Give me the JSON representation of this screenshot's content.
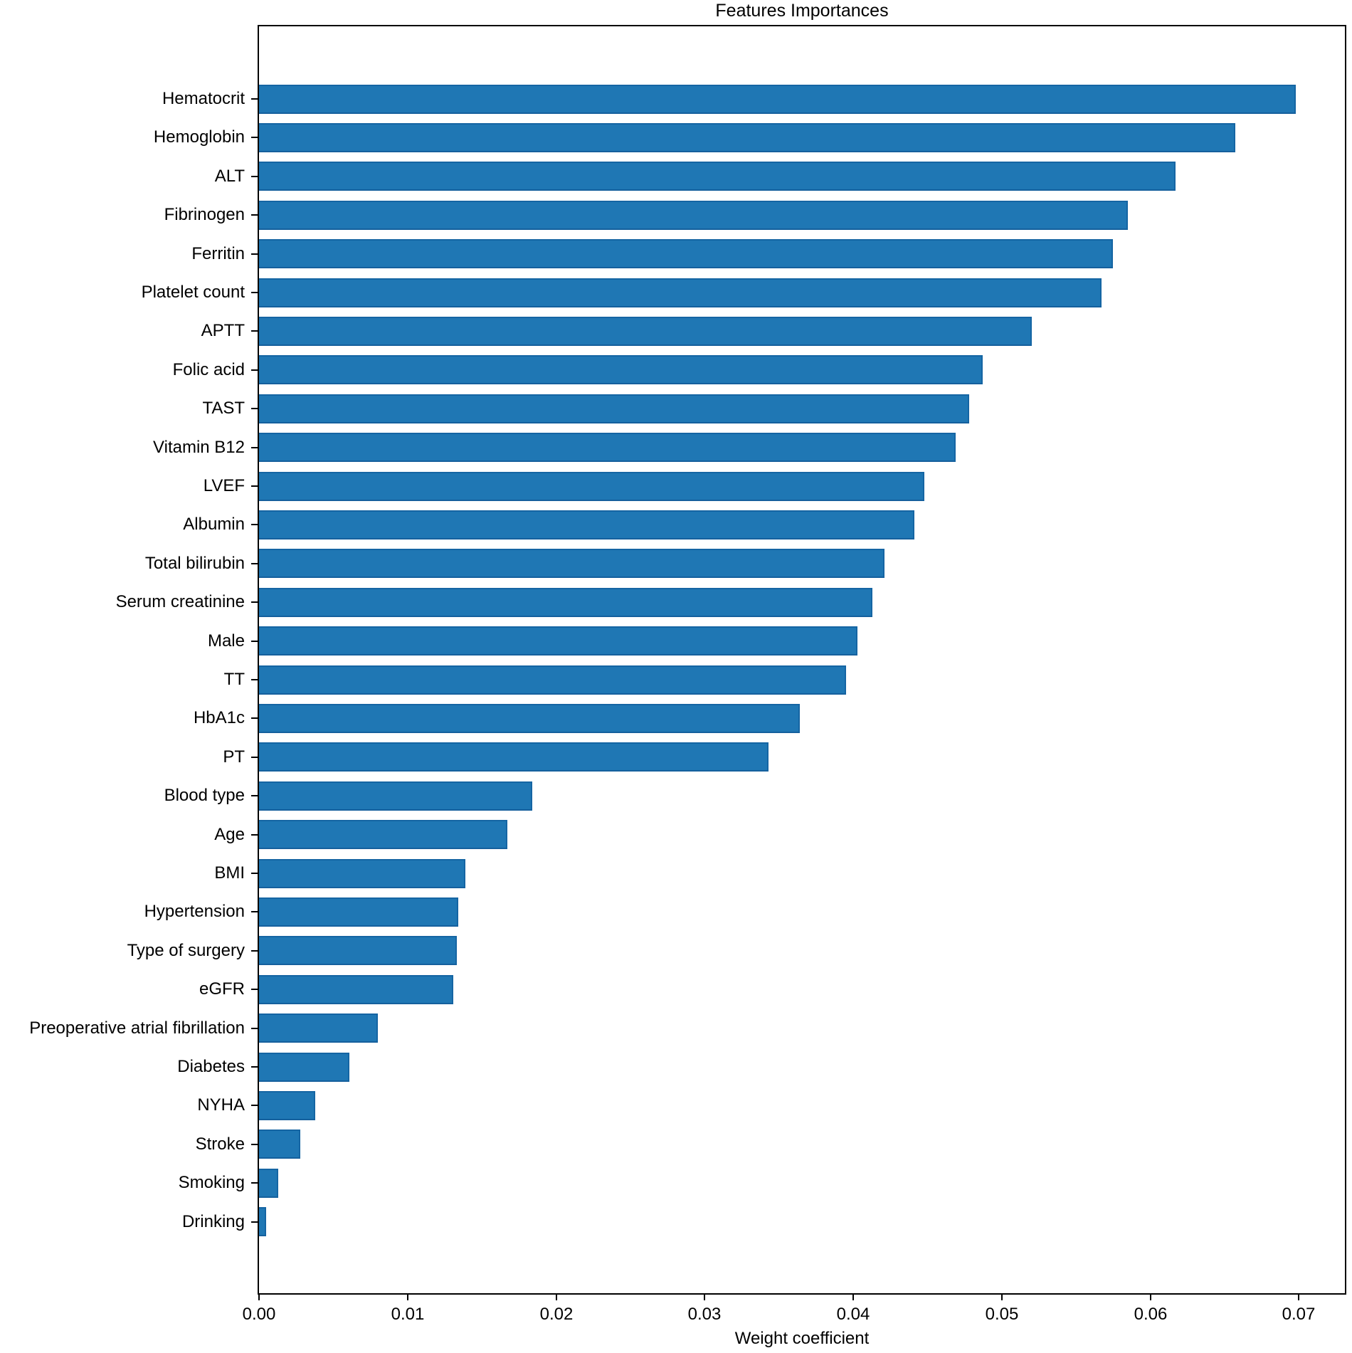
{
  "chart_data": {
    "type": "bar",
    "orientation": "horizontal",
    "title": "Features Importances",
    "xlabel": "Weight coefficient",
    "ylabel": "",
    "categories": [
      "Hematocrit",
      "Hemoglobin",
      "ALT",
      "Fibrinogen",
      "Ferritin",
      "Platelet count",
      "APTT",
      "Folic acid",
      "TAST",
      "Vitamin B12",
      "LVEF",
      "Albumin",
      "Total bilirubin",
      "Serum creatinine",
      "Male",
      "TT",
      "HbA1c",
      "PT",
      "Blood type",
      "Age",
      "BMI",
      "Hypertension",
      "Type of surgery",
      "eGFR",
      "Preoperative atrial fibrillation",
      "Diabetes",
      "NYHA",
      "Stroke",
      "Smoking",
      "Drinking"
    ],
    "values": [
      0.0698,
      0.0657,
      0.0617,
      0.0585,
      0.0575,
      0.0567,
      0.052,
      0.0487,
      0.0478,
      0.0469,
      0.0448,
      0.0441,
      0.0421,
      0.0413,
      0.0403,
      0.0395,
      0.0364,
      0.0343,
      0.0184,
      0.0167,
      0.0139,
      0.0134,
      0.0133,
      0.0131,
      0.008,
      0.0061,
      0.0038,
      0.0028,
      0.0013,
      0.0005
    ],
    "xlim": [
      0,
      0.0731
    ],
    "xtick_labels": [
      "0.00",
      "0.01",
      "0.02",
      "0.03",
      "0.04",
      "0.05",
      "0.06",
      "0.07"
    ],
    "xtick_values": [
      0.0,
      0.01,
      0.02,
      0.03,
      0.04,
      0.05,
      0.06,
      0.07
    ],
    "grid": false,
    "legend": null,
    "bar_color": "#1f77b4",
    "bar_edge_color": "#1565a3",
    "axis_color": "#000000"
  }
}
